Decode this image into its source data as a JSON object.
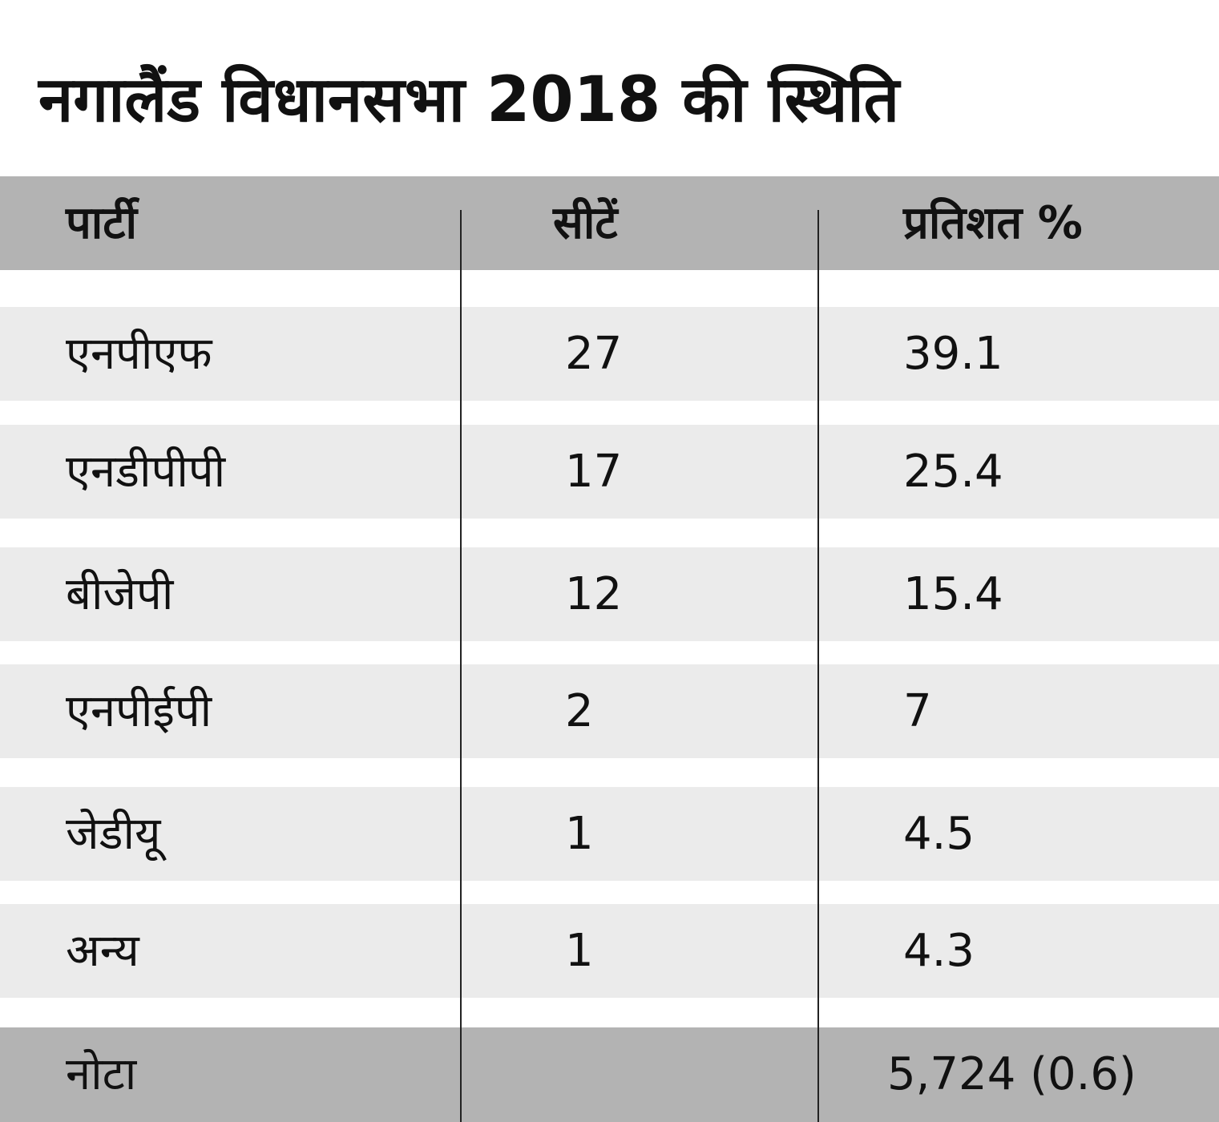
{
  "title": "नगालैंड विधानसभा 2018 की स्थिति",
  "colors": {
    "header_bg": "#b3b3b3",
    "row_bg": "#ebebeb",
    "text": "#111111"
  },
  "chart_data": {
    "type": "table",
    "title": "नगालैंड विधानसभा 2018 की स्थिति",
    "columns": [
      "पार्टी",
      "सीटें",
      "प्रतिशत %"
    ],
    "rows": [
      [
        "एनपीएफ",
        "27",
        "39.1"
      ],
      [
        "एनडीपीपी",
        "17",
        "25.4"
      ],
      [
        "बीजेपी",
        "12",
        "15.4"
      ],
      [
        "एनपीईपी",
        "2",
        "7"
      ],
      [
        "जेडीयू",
        "1",
        "4.5"
      ],
      [
        "अन्य",
        "1",
        "4.3"
      ],
      [
        "नोटा",
        "",
        "5,724 (0.6)"
      ]
    ]
  }
}
